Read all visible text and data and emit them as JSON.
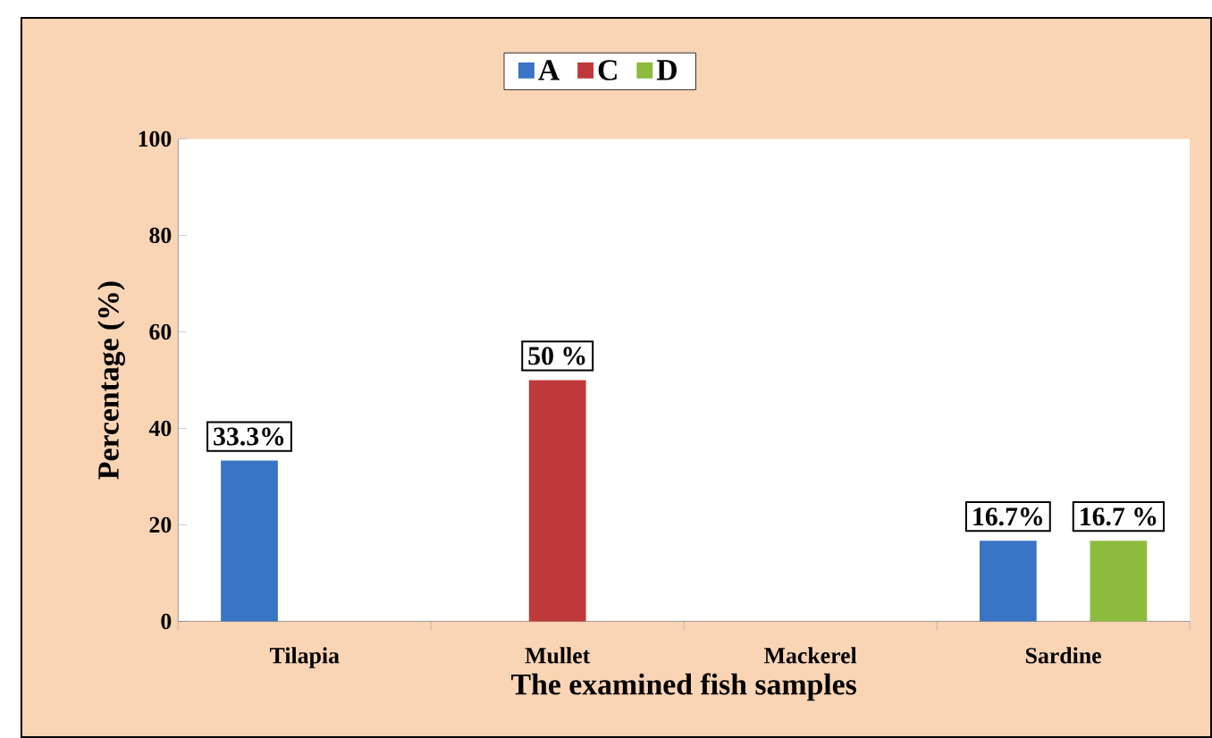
{
  "chart_data": {
    "type": "bar",
    "xlabel": "The examined fish samples",
    "ylabel": "Percentage (%)",
    "categories": [
      "Tilapia",
      "Mullet",
      "Mackerel",
      "Sardine"
    ],
    "series": [
      {
        "name": "A",
        "color": "#3a74c4",
        "values": [
          33.3,
          null,
          null,
          16.7
        ],
        "value_labels": [
          "33.3%",
          null,
          null,
          "16.7%"
        ]
      },
      {
        "name": "C",
        "color": "#c0393a",
        "values": [
          null,
          50,
          null,
          null
        ],
        "value_labels": [
          null,
          "50 %",
          null,
          null
        ]
      },
      {
        "name": "D",
        "color": "#8cbb3e",
        "values": [
          null,
          null,
          null,
          16.7
        ],
        "value_labels": [
          null,
          null,
          null,
          "16.7 %"
        ]
      }
    ],
    "ylim": [
      0,
      100
    ],
    "yticks": [
      0,
      20,
      40,
      60,
      80,
      100
    ],
    "grid": false,
    "legend": "top"
  }
}
